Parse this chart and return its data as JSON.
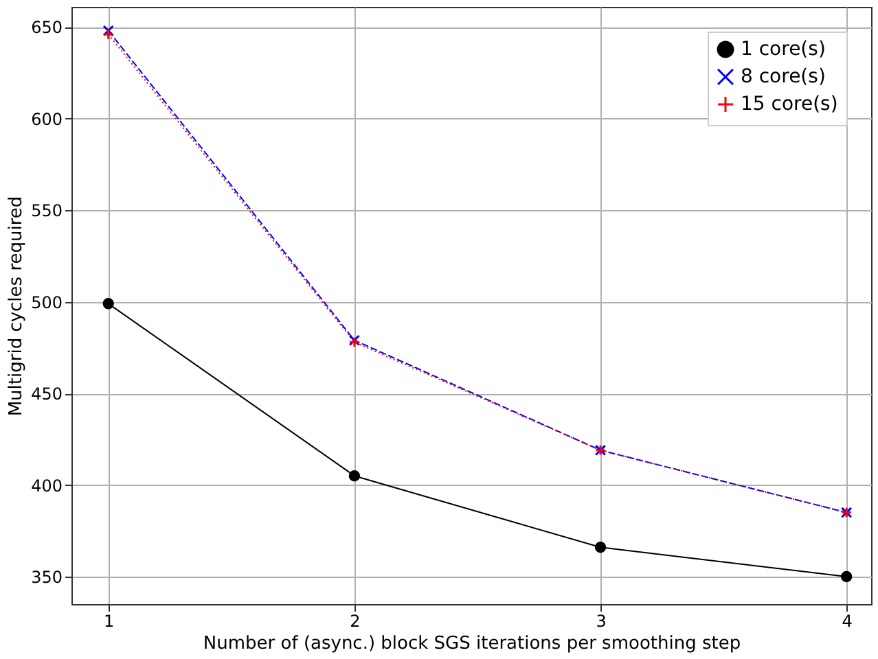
{
  "chart_data": {
    "type": "line",
    "xlabel": "Number of (async.) block SGS iterations per smoothing step",
    "ylabel": "Multigrid cycles required",
    "x": [
      1,
      2,
      3,
      4
    ],
    "series": [
      {
        "name": "1 core(s)",
        "color": "#000000",
        "marker": "circle",
        "line_style": "solid",
        "values": [
          499,
          405,
          366,
          350
        ]
      },
      {
        "name": "8 core(s)",
        "color": "#0000ff",
        "marker": "cross",
        "line_style": "dashed",
        "values": [
          648,
          479,
          419,
          385
        ]
      },
      {
        "name": "15 core(s)",
        "color": "#ff0000",
        "marker": "plus",
        "line_style": "dotted",
        "values": [
          646,
          478,
          419,
          385
        ]
      }
    ],
    "xlim": [
      0.85,
      4.1
    ],
    "ylim": [
      335,
      661
    ],
    "xticks": [
      1,
      2,
      3,
      4
    ],
    "yticks": [
      350,
      400,
      450,
      500,
      550,
      600,
      650
    ],
    "grid": true,
    "legend": "top right"
  }
}
